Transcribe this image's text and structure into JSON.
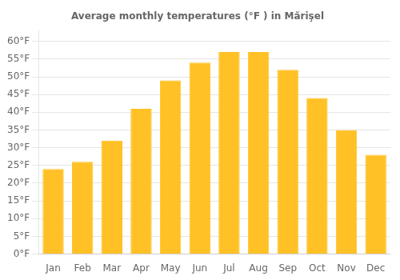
{
  "chart_data": {
    "type": "bar",
    "title": "Average monthly temperatures (°F ) in Mărişel",
    "categories": [
      "Jan",
      "Feb",
      "Mar",
      "Apr",
      "May",
      "Jun",
      "Jul",
      "Aug",
      "Sep",
      "Oct",
      "Nov",
      "Dec"
    ],
    "values": [
      24,
      26,
      32,
      41,
      49,
      54,
      57,
      57,
      52,
      44,
      35,
      28
    ],
    "color": "#FFC125",
    "ylim": [
      0,
      63
    ],
    "yticks": [
      {
        "value": 0,
        "label": "0°F"
      },
      {
        "value": 5,
        "label": "5°F"
      },
      {
        "value": 10,
        "label": "10°F"
      },
      {
        "value": 15,
        "label": "15°F"
      },
      {
        "value": 20,
        "label": "20°F"
      },
      {
        "value": 25,
        "label": "25°F"
      },
      {
        "value": 30,
        "label": "30°F"
      },
      {
        "value": 35,
        "label": "35°F"
      },
      {
        "value": 40,
        "label": "40°F"
      },
      {
        "value": 45,
        "label": "45°F"
      },
      {
        "value": 50,
        "label": "50°F"
      },
      {
        "value": 55,
        "label": "55°F"
      },
      {
        "value": 60,
        "label": "60°F"
      }
    ],
    "grid": true
  }
}
